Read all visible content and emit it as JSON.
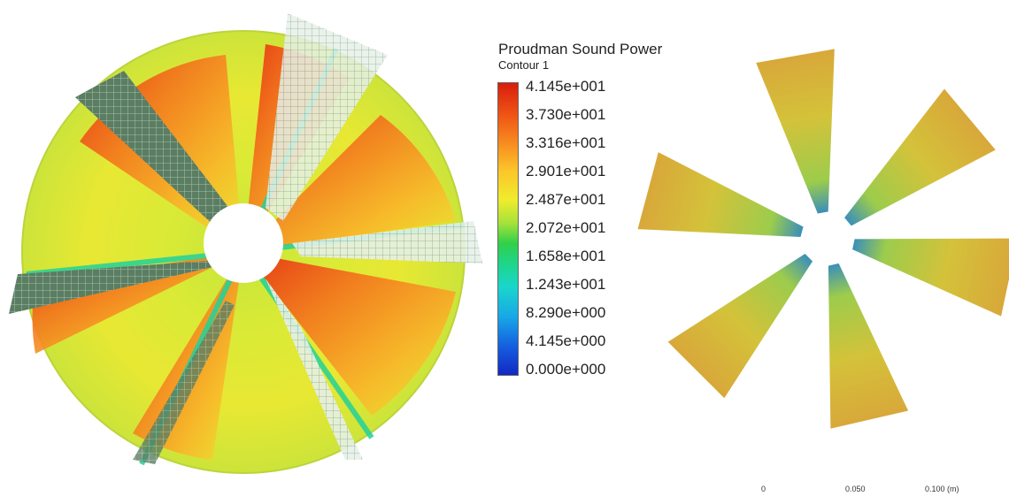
{
  "legend": {
    "title": "Proudman Sound Power",
    "subtitle": "Contour 1",
    "labels": [
      "4.145e+001",
      "3.730e+001",
      "3.316e+001",
      "2.901e+001",
      "2.487e+001",
      "2.072e+001",
      "1.658e+001",
      "1.243e+001",
      "8.290e+000",
      "4.145e+000",
      "0.000e+000"
    ],
    "colors": [
      "#d81e0e",
      "#ee4f14",
      "#f7881f",
      "#fcc52a",
      "#f0ec2c",
      "#a5e23a",
      "#2fd04a",
      "#1ed58b",
      "#19d6cd",
      "#18a8e6",
      "#1228c4"
    ]
  },
  "scale_bar": {
    "labels": [
      "0",
      "0.050",
      "0.100 (m)"
    ]
  },
  "views": {
    "left": "disc-contour",
    "right": "blade-contour"
  }
}
